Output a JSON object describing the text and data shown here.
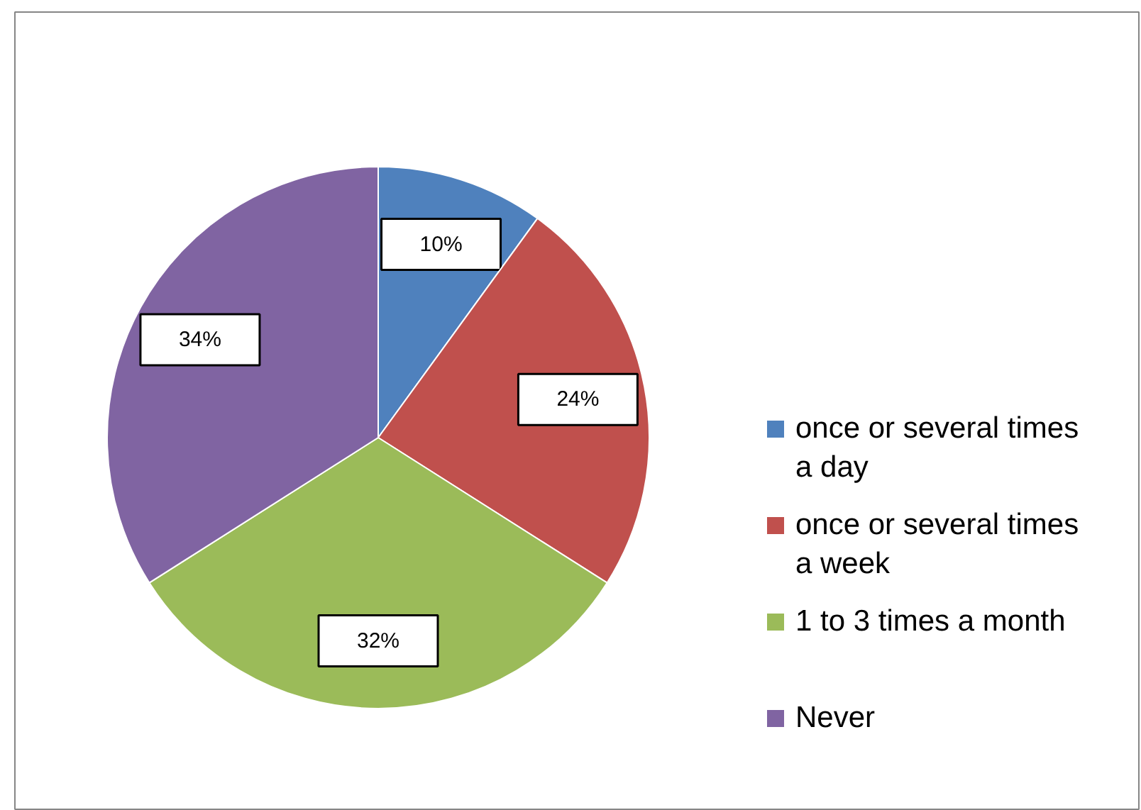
{
  "chart_data": {
    "type": "pie",
    "categories": [
      "once or several times a day",
      "once or several times a week",
      "1 to 3 times a month",
      "Never"
    ],
    "values": [
      10,
      24,
      32,
      34
    ],
    "colors": [
      "#4f81bd",
      "#c0504d",
      "#9bbb59",
      "#8064a2"
    ],
    "value_labels": [
      "10%",
      "24%",
      "32%",
      "34%"
    ],
    "legend": "right"
  }
}
